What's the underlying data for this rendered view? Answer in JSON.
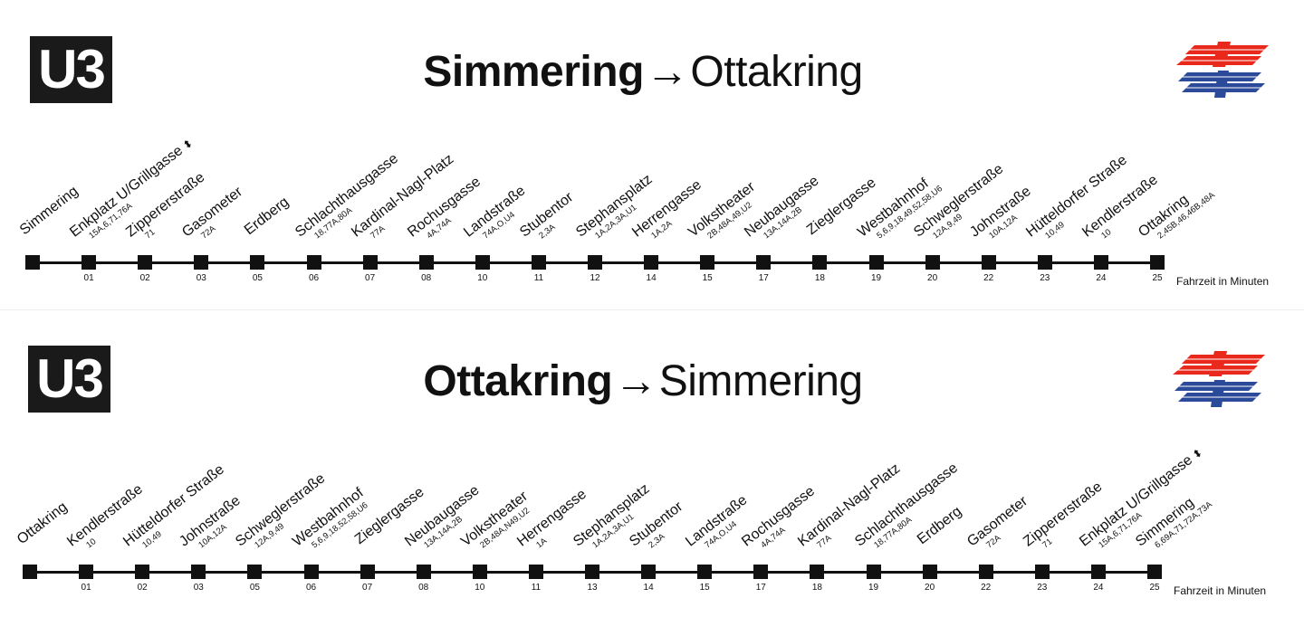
{
  "legend_text": "Fahrzeit in Minuten",
  "directions": [
    {
      "line": "U3",
      "from": "Simmering",
      "arrow": "→",
      "to": "Ottakring",
      "stations": [
        {
          "name": "Simmering",
          "lines": "",
          "minutes": ""
        },
        {
          "name": "Enkplatz U/Grillgasse",
          "lines": "15A,6,71,76A",
          "minutes": "01",
          "accessible": true
        },
        {
          "name": "Zippererstraße",
          "lines": "71",
          "minutes": "02"
        },
        {
          "name": "Gasometer",
          "lines": "72A",
          "minutes": "03"
        },
        {
          "name": "Erdberg",
          "lines": "",
          "minutes": "05"
        },
        {
          "name": "Schlachthausgasse",
          "lines": "18,77A,80A",
          "minutes": "06"
        },
        {
          "name": "Kardinal-Nagl-Platz",
          "lines": "77A",
          "minutes": "07"
        },
        {
          "name": "Rochusgasse",
          "lines": "4A,74A",
          "minutes": "08"
        },
        {
          "name": "Landstraße",
          "lines": "74A,O,U4",
          "minutes": "10"
        },
        {
          "name": "Stubentor",
          "lines": "2,3A",
          "minutes": "11"
        },
        {
          "name": "Stephansplatz",
          "lines": "1A,2A,3A,U1",
          "minutes": "12"
        },
        {
          "name": "Herrengasse",
          "lines": "1A,2A",
          "minutes": "14"
        },
        {
          "name": "Volkstheater",
          "lines": "2B,48A,49,U2",
          "minutes": "15"
        },
        {
          "name": "Neubaugasse",
          "lines": "13A,14A,2B",
          "minutes": "17"
        },
        {
          "name": "Zieglergasse",
          "lines": "",
          "minutes": "18"
        },
        {
          "name": "Westbahnhof",
          "lines": "5,6,9,18,49,52,58,U6",
          "minutes": "19"
        },
        {
          "name": "Schweglerstraße",
          "lines": "12A,9,49",
          "minutes": "20"
        },
        {
          "name": "Johnstraße",
          "lines": "10A,12A",
          "minutes": "22"
        },
        {
          "name": "Hütteldorfer Straße",
          "lines": "10,49",
          "minutes": "23"
        },
        {
          "name": "Kendlerstraße",
          "lines": "10",
          "minutes": "24"
        },
        {
          "name": "Ottakring",
          "lines": "2,45B,46,46B,48A",
          "minutes": "25"
        }
      ]
    },
    {
      "line": "U3",
      "from": "Ottakring",
      "arrow": "→",
      "to": "Simmering",
      "stations": [
        {
          "name": "Ottakring",
          "lines": "",
          "minutes": ""
        },
        {
          "name": "Kendlerstraße",
          "lines": "10",
          "minutes": "01"
        },
        {
          "name": "Hütteldorfer Straße",
          "lines": "10,49",
          "minutes": "02"
        },
        {
          "name": "Johnstraße",
          "lines": "10A,12A",
          "minutes": "03"
        },
        {
          "name": "Schweglerstraße",
          "lines": "12A,9,49",
          "minutes": "05"
        },
        {
          "name": "Westbahnhof",
          "lines": "5,6,9,18,52,58,U6",
          "minutes": "06"
        },
        {
          "name": "Zieglergasse",
          "lines": "",
          "minutes": "07"
        },
        {
          "name": "Neubaugasse",
          "lines": "13A,14A,2B",
          "minutes": "08"
        },
        {
          "name": "Volkstheater",
          "lines": "2B,48A,N49,U2",
          "minutes": "10"
        },
        {
          "name": "Herrengasse",
          "lines": "1A",
          "minutes": "11"
        },
        {
          "name": "Stephansplatz",
          "lines": "1A,2A,3A,U1",
          "minutes": "13"
        },
        {
          "name": "Stubentor",
          "lines": "2,3A",
          "minutes": "14"
        },
        {
          "name": "Landstraße",
          "lines": "74A,O,U4",
          "minutes": "15"
        },
        {
          "name": "Rochusgasse",
          "lines": "4A,74A",
          "minutes": "17"
        },
        {
          "name": "Kardinal-Nagl-Platz",
          "lines": "77A",
          "minutes": "18"
        },
        {
          "name": "Schlachthausgasse",
          "lines": "18,77A,80A",
          "minutes": "19"
        },
        {
          "name": "Erdberg",
          "lines": "",
          "minutes": "20"
        },
        {
          "name": "Gasometer",
          "lines": "72A",
          "minutes": "22"
        },
        {
          "name": "Zippererstraße",
          "lines": "71",
          "minutes": "23"
        },
        {
          "name": "Enkplatz U/Grillgasse",
          "lines": "15A,6,71,76A",
          "minutes": "24",
          "accessible": true
        },
        {
          "name": "Simmering",
          "lines": "6,69A,71,72A,73A",
          "minutes": "25"
        }
      ]
    }
  ],
  "colors": {
    "badge_bg": "#1a1a1a",
    "logo_red": "#e8291c",
    "logo_blue": "#2c4a9a",
    "track": "#111111"
  },
  "icons": {
    "logo": "wiener-linien-logo",
    "accessible": "elevator-icon"
  }
}
